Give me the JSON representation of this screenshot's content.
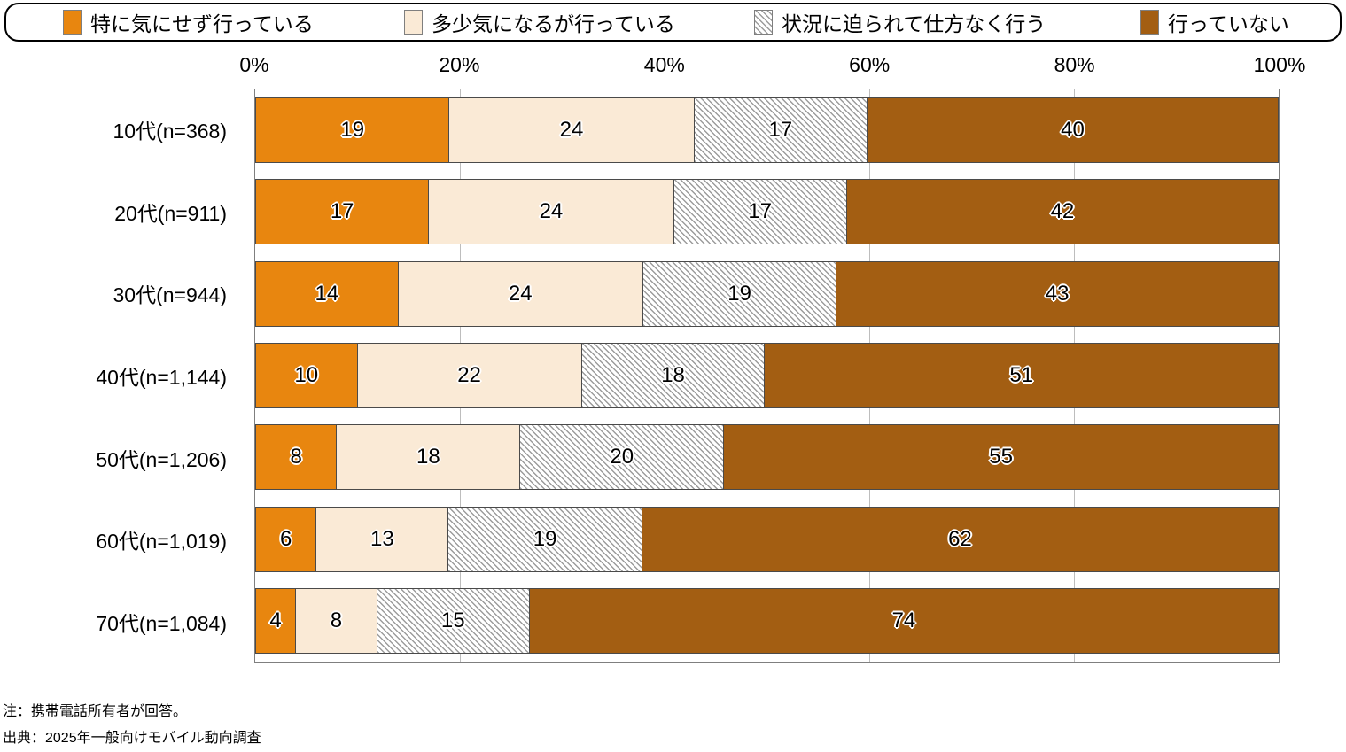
{
  "legend": {
    "items": [
      {
        "label": "特に気にせず行っている",
        "color": "#E8860F",
        "pattern": "solid"
      },
      {
        "label": "多少気になるが行っている",
        "color": "#FAEAD6",
        "pattern": "solid"
      },
      {
        "label": "状況に迫られて仕方なく行う",
        "color": "#9C9C9C",
        "pattern": "hatch"
      },
      {
        "label": "行っていない",
        "color": "#A35E12",
        "pattern": "solid"
      }
    ]
  },
  "axis": {
    "ticks": [
      "0%",
      "20%",
      "40%",
      "60%",
      "80%",
      "100%"
    ]
  },
  "chart_data": {
    "type": "bar",
    "orientation": "horizontal-stacked",
    "unit": "percent",
    "xlim": [
      0,
      100
    ],
    "grid": "vertical, 20% steps",
    "legend_position": "top",
    "categories": [
      "10代(n=368)",
      "20代(n=911)",
      "30代(n=944)",
      "40代(n=1,144)",
      "50代(n=1,206)",
      "60代(n=1,019)",
      "70代(n=1,084)"
    ],
    "series": [
      {
        "name": "特に気にせず行っている",
        "color": "#E8860F",
        "pattern": "solid",
        "values": [
          19,
          17,
          14,
          10,
          8,
          6,
          4
        ]
      },
      {
        "name": "多少気になるが行っている",
        "color": "#FAEAD6",
        "pattern": "solid",
        "values": [
          24,
          24,
          24,
          22,
          18,
          13,
          8
        ]
      },
      {
        "name": "状況に迫られて仕方なく行う",
        "color": "#9C9C9C",
        "pattern": "hatch",
        "values": [
          17,
          17,
          19,
          18,
          20,
          19,
          15
        ]
      },
      {
        "name": "行っていない",
        "color": "#A35E12",
        "pattern": "solid",
        "values": [
          40,
          42,
          43,
          51,
          55,
          62,
          74
        ]
      }
    ]
  },
  "notes": {
    "note": "注：携帯電話所有者が回答。",
    "source": "出典：2025年一般向けモバイル動向調査"
  }
}
